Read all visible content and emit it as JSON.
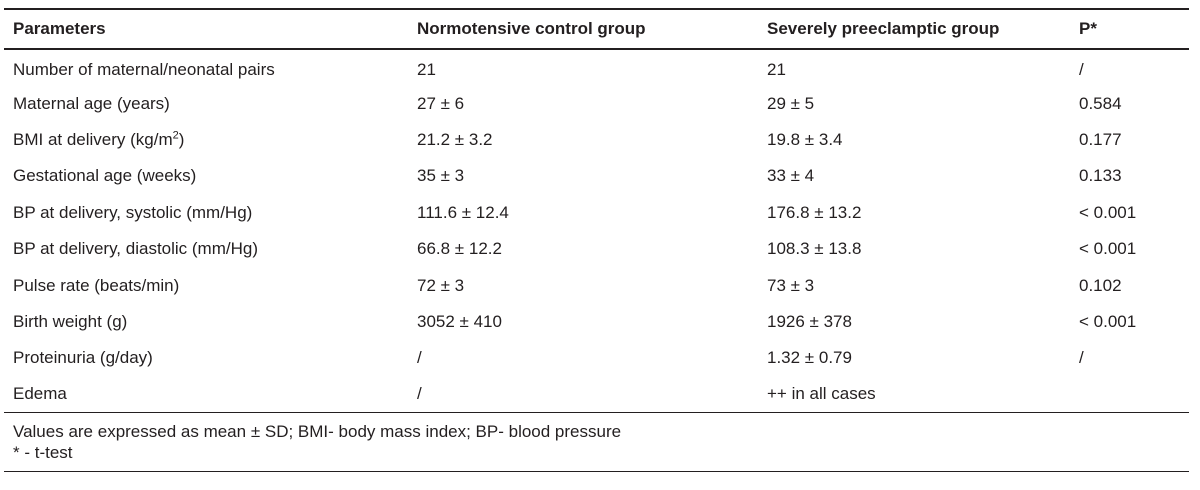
{
  "table": {
    "headers": [
      "Parameters",
      "Normotensive control group",
      "Severely preeclamptic group",
      "P*"
    ],
    "rows": [
      {
        "param": "Number of maternal/neonatal pairs",
        "param_sup": "",
        "param_suffix": "",
        "control": "21",
        "preeclamptic": "21",
        "p": "/"
      },
      {
        "param": "Maternal age (years)",
        "param_sup": "",
        "param_suffix": "",
        "control": "27 ± 6",
        "preeclamptic": "29 ± 5",
        "p": "0.584"
      },
      {
        "param": "BMI at delivery (kg/m",
        "param_sup": "2",
        "param_suffix": ")",
        "control": "21.2 ± 3.2",
        "preeclamptic": "19.8 ± 3.4",
        "p": "0.177"
      },
      {
        "param": "Gestational age (weeks)",
        "param_sup": "",
        "param_suffix": "",
        "control": "35 ± 3",
        "preeclamptic": "33 ± 4",
        "p": "0.133"
      },
      {
        "param": "BP at delivery, systolic (mm/Hg)",
        "param_sup": "",
        "param_suffix": "",
        "control": "111.6 ± 12.4",
        "preeclamptic": "176.8 ± 13.2",
        "p": "< 0.001"
      },
      {
        "param": "BP at delivery, diastolic (mm/Hg)",
        "param_sup": "",
        "param_suffix": "",
        "control": "66.8 ± 12.2",
        "preeclamptic": "108.3 ± 13.8",
        "p": "< 0.001"
      },
      {
        "param": "Pulse rate (beats/min)",
        "param_sup": "",
        "param_suffix": "",
        "control": "72 ± 3",
        "preeclamptic": "73 ± 3",
        "p": "0.102"
      },
      {
        "param": "Birth weight (g)",
        "param_sup": "",
        "param_suffix": "",
        "control": "3052 ± 410",
        "preeclamptic": "1926 ± 378",
        "p": "< 0.001"
      },
      {
        "param": "Proteinuria (g/day)",
        "param_sup": "",
        "param_suffix": "",
        "control": "/",
        "preeclamptic": "1.32 ± 0.79",
        "p": "/"
      },
      {
        "param": "Edema",
        "param_sup": "",
        "param_suffix": "",
        "control": "/",
        "preeclamptic": "++ in all cases",
        "p": ""
      }
    ],
    "footnotes": [
      "Values are expressed as mean ± SD; BMI- body mass index; BP- blood pressure",
      "* - t-test"
    ]
  }
}
